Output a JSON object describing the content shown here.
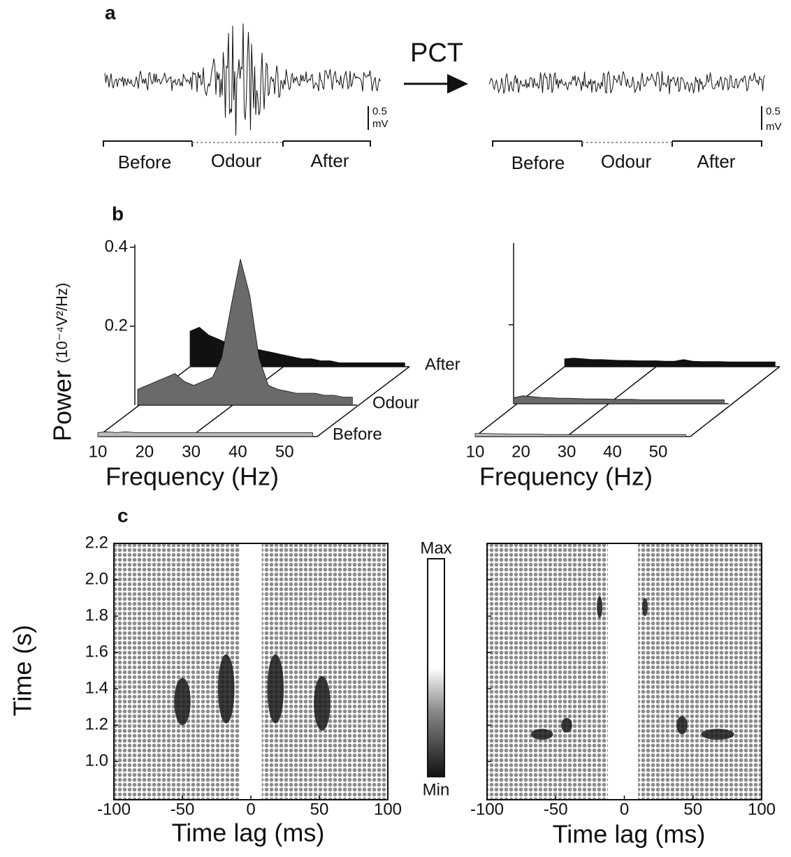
{
  "panel_a": {
    "label": "a",
    "arrow_label": "PCT",
    "left": {
      "scale_value": "0.5",
      "scale_unit": "mV",
      "epochs": [
        "Before",
        "Odour",
        "After"
      ]
    },
    "right": {
      "scale_value": "0.5",
      "scale_unit": "mV",
      "epochs": [
        "Before",
        "Odour",
        "After"
      ]
    }
  },
  "panel_b": {
    "label": "b",
    "y_label": "Power",
    "y_unit": "(10⁻⁴V²/Hz)",
    "x_label": "Frequency (Hz)",
    "xlim": [
      10,
      57
    ],
    "xticks": [
      10,
      20,
      30,
      40,
      50
    ],
    "ylim": [
      0,
      0.4
    ],
    "frequencies": [
      10,
      12,
      14,
      16,
      18,
      20,
      22,
      24,
      26,
      28,
      30,
      32,
      34,
      36,
      38,
      40,
      42,
      44,
      46,
      48,
      50,
      52,
      54,
      56
    ],
    "left": {
      "yticks": [
        0.2,
        0.4
      ],
      "series": [
        {
          "name": "Before",
          "color": "#bbbbbb",
          "values": [
            0.01,
            0.012,
            0.01,
            0.012,
            0.01,
            0.01,
            0.01,
            0.01,
            0.01,
            0.01,
            0.01,
            0.01,
            0.01,
            0.01,
            0.01,
            0.01,
            0.01,
            0.01,
            0.01,
            0.01,
            0.01,
            0.01,
            0.01,
            0.01
          ]
        },
        {
          "name": "Odour",
          "color": "#6a6a6a",
          "values": [
            0.04,
            0.05,
            0.06,
            0.07,
            0.08,
            0.06,
            0.05,
            0.06,
            0.07,
            0.12,
            0.25,
            0.37,
            0.28,
            0.12,
            0.05,
            0.04,
            0.035,
            0.03,
            0.03,
            0.03,
            0.025,
            0.025,
            0.02,
            0.02
          ]
        },
        {
          "name": "After",
          "color": "#111111",
          "values": [
            0.09,
            0.1,
            0.08,
            0.07,
            0.06,
            0.06,
            0.05,
            0.045,
            0.04,
            0.035,
            0.03,
            0.025,
            0.02,
            0.02,
            0.015,
            0.015,
            0.01,
            0.01,
            0.01,
            0.01,
            0.01,
            0.01,
            0.01,
            0.01
          ]
        }
      ]
    },
    "right": {
      "series": [
        {
          "color": "#bbbbbb",
          "values": [
            0.008,
            0.008,
            0.007,
            0.007,
            0.006,
            0.006,
            0.006,
            0.006,
            0.005,
            0.005,
            0.005,
            0.005,
            0.005,
            0.005,
            0.005,
            0.005,
            0.005,
            0.005,
            0.005,
            0.005,
            0.005,
            0.005,
            0.005,
            0.005
          ]
        },
        {
          "color": "#6a6a6a",
          "values": [
            0.015,
            0.02,
            0.018,
            0.016,
            0.015,
            0.014,
            0.014,
            0.013,
            0.012,
            0.012,
            0.012,
            0.011,
            0.011,
            0.011,
            0.01,
            0.01,
            0.01,
            0.01,
            0.01,
            0.01,
            0.01,
            0.01,
            0.01,
            0.01
          ]
        },
        {
          "color": "#111111",
          "values": [
            0.02,
            0.022,
            0.02,
            0.018,
            0.018,
            0.017,
            0.016,
            0.016,
            0.015,
            0.015,
            0.015,
            0.014,
            0.014,
            0.018,
            0.014,
            0.013,
            0.013,
            0.013,
            0.012,
            0.012,
            0.012,
            0.012,
            0.012,
            0.012
          ]
        }
      ]
    }
  },
  "panel_c": {
    "label": "c",
    "x_label": "Time lag (ms)",
    "y_label": "Time (s)",
    "xlim": [
      -100,
      100
    ],
    "xticks": [
      -100,
      -50,
      0,
      50,
      100
    ],
    "ylim": [
      0.79,
      2.2
    ],
    "yticks": [
      {
        "value": 1.0,
        "label": "1.0"
      },
      1.2,
      1.4,
      1.6,
      1.8,
      {
        "value": 2.0,
        "label": "2.0"
      },
      2.2
    ],
    "colorbar": {
      "max": "Max",
      "min": "Min"
    }
  }
}
